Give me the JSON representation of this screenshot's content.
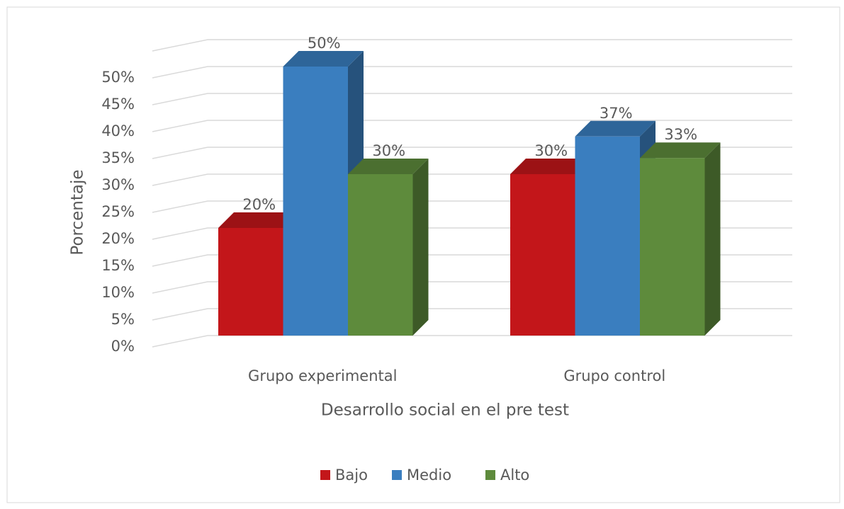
{
  "chart_data": {
    "type": "bar3d",
    "x_label": "Desarrollo social en el pre test",
    "y_label": "Porcentaje",
    "categories": [
      "Grupo experimental",
      "Grupo control"
    ],
    "series": [
      {
        "name": "Bajo",
        "color": "#c3161a",
        "values": [
          20,
          30
        ],
        "value_labels": [
          "20%",
          "30%"
        ]
      },
      {
        "name": "Medio",
        "color": "#3a7ebf",
        "values": [
          50,
          37
        ],
        "value_labels": [
          "50%",
          "37%"
        ]
      },
      {
        "name": "Alto",
        "color": "#5e8b3c",
        "values": [
          30,
          33
        ],
        "value_labels": [
          "30%",
          "33%"
        ]
      }
    ],
    "ylim": [
      0,
      55
    ],
    "yticks": [
      {
        "value": 0,
        "label": "0%"
      },
      {
        "value": 5,
        "label": "5%"
      },
      {
        "value": 10,
        "label": "10%"
      },
      {
        "value": 15,
        "label": "15%"
      },
      {
        "value": 20,
        "label": "20%"
      },
      {
        "value": 25,
        "label": "25%"
      },
      {
        "value": 30,
        "label": "30%"
      },
      {
        "value": 35,
        "label": "35%"
      },
      {
        "value": 40,
        "label": "40%"
      },
      {
        "value": 45,
        "label": "45%"
      },
      {
        "value": 50,
        "label": "50%"
      }
    ],
    "grid": true,
    "legend": "bottom"
  }
}
